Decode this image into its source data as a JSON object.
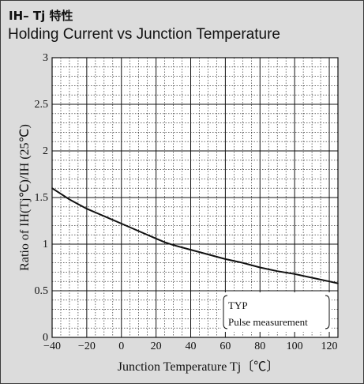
{
  "header": {
    "title_jp": "IH– Tj 特性",
    "title_en": "Holding Current vs Junction Temperature"
  },
  "chart_data": {
    "type": "line",
    "xlabel": "Junction Temperature  Tj〔℃〕",
    "ylabel": "Ratio of IH(Tj℃)/IH (25℃)",
    "xlim": [
      -40,
      125
    ],
    "ylim": [
      0,
      3
    ],
    "x_ticks": [
      -40,
      -20,
      0,
      20,
      40,
      60,
      80,
      100,
      120
    ],
    "y_ticks": [
      0,
      0.5,
      1,
      1.5,
      2,
      2.5,
      3
    ],
    "y_tick_labels": [
      "0",
      "0.5",
      "1",
      "1.5",
      "2",
      "2.5",
      "3"
    ],
    "grid": true,
    "series": [
      {
        "x": [
          -40,
          -30,
          -20,
          -10,
          0,
          10,
          20,
          25,
          30,
          40,
          50,
          60,
          70,
          80,
          90,
          100,
          110,
          120,
          125
        ],
        "y": [
          1.6,
          1.48,
          1.38,
          1.3,
          1.22,
          1.14,
          1.06,
          1.02,
          0.99,
          0.94,
          0.89,
          0.84,
          0.8,
          0.75,
          0.71,
          0.68,
          0.64,
          0.6,
          0.58
        ]
      }
    ],
    "annotations": {
      "note_line1": "TYP",
      "note_line2": "Pulse measurement"
    }
  }
}
